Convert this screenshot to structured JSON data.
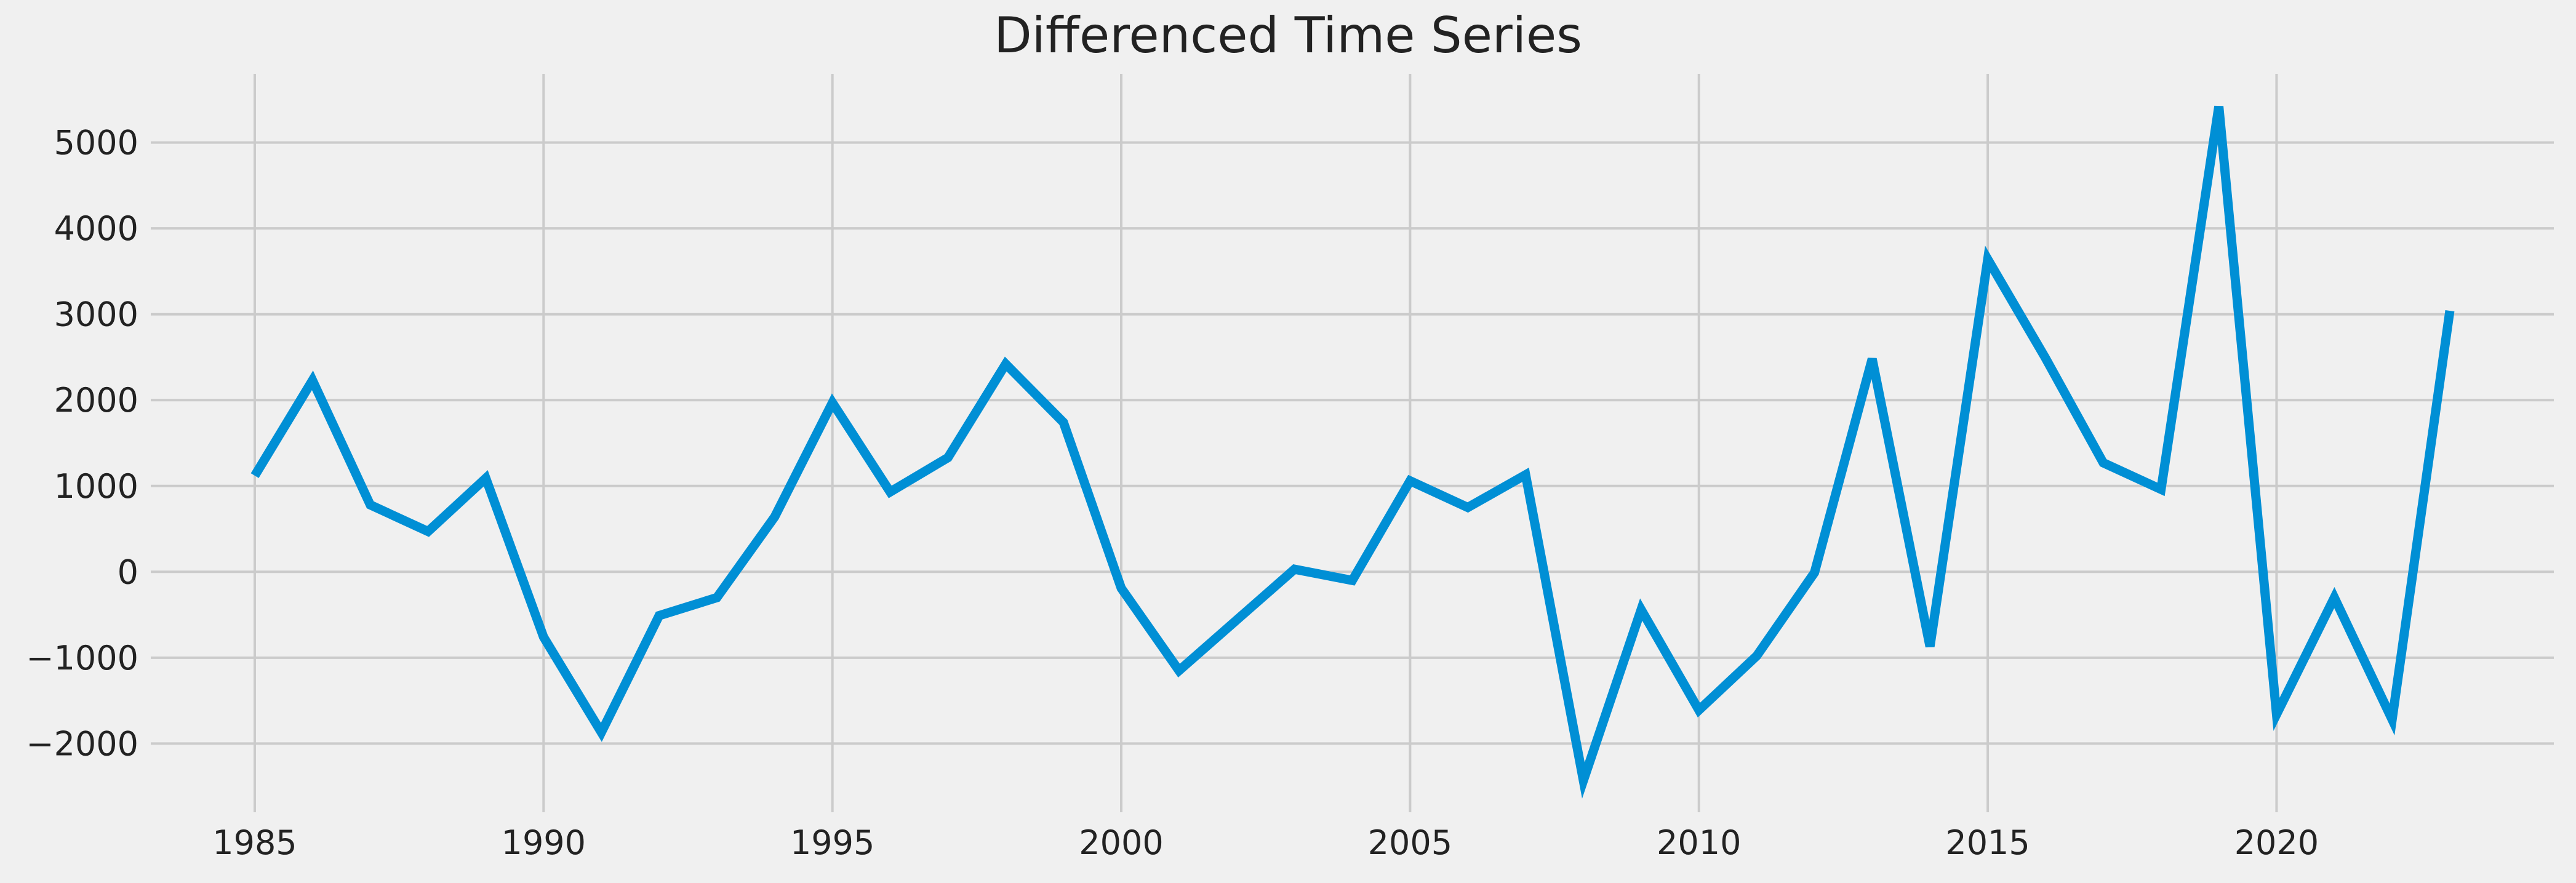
{
  "chart_data": {
    "type": "line",
    "title": "Differenced Time Series",
    "xlabel": "",
    "ylabel": "",
    "xlim": [
      1983.2,
      2024.8
    ],
    "ylim": [
      -2800,
      5800
    ],
    "xticks": [
      1985,
      1990,
      1995,
      2000,
      2005,
      2010,
      2015,
      2020
    ],
    "xtick_labels": [
      "1985",
      "1990",
      "1995",
      "2000",
      "2005",
      "2010",
      "2015",
      "2020"
    ],
    "yticks": [
      -2000,
      -1000,
      0,
      1000,
      2000,
      3000,
      4000,
      5000
    ],
    "ytick_labels": [
      "−2000",
      "−1000",
      "0",
      "1000",
      "2000",
      "3000",
      "4000",
      "5000"
    ],
    "grid": true,
    "legend": "none",
    "series": [
      {
        "color": "#008fd5",
        "x": [
          1985,
          1986,
          1987,
          1988,
          1989,
          1990,
          1991,
          1992,
          1993,
          1994,
          1995,
          1996,
          1997,
          1998,
          1999,
          2000,
          2001,
          2002,
          2003,
          2004,
          2005,
          2006,
          2007,
          2008,
          2009,
          2010,
          2011,
          2012,
          2013,
          2014,
          2015,
          2016,
          2017,
          2018,
          2019,
          2020,
          2021,
          2022,
          2023
        ],
        "y": [
          1120,
          2230,
          780,
          470,
          1090,
          -760,
          -1870,
          -510,
          -300,
          640,
          1970,
          930,
          1330,
          2420,
          1740,
          -190,
          -1150,
          -560,
          30,
          -100,
          1060,
          750,
          1130,
          -2430,
          -440,
          -1610,
          -980,
          -10,
          2480,
          -870,
          3640,
          2490,
          1270,
          960,
          5420,
          -1660,
          -300,
          -1720,
          3040
        ]
      }
    ]
  }
}
